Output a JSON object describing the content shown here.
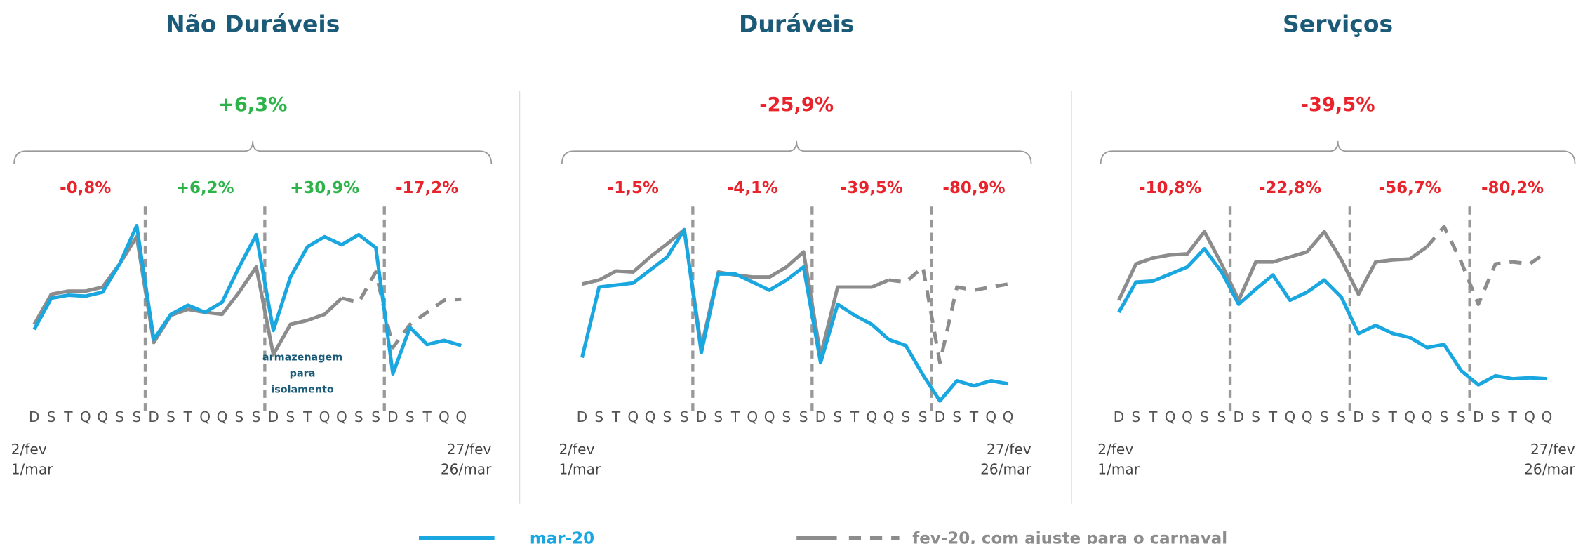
{
  "chart_data": [
    {
      "type": "line",
      "title": "Não Duráveis",
      "total_label": {
        "text": "+6,3%",
        "color": "#2db34a"
      },
      "week_labels": [
        {
          "text": "-0,8%",
          "color": "#e8232b"
        },
        {
          "text": "+6,2%",
          "color": "#2db34a"
        },
        {
          "text": "+30,9%",
          "color": "#2db34a"
        },
        {
          "text": "-17,2%",
          "color": "#e8232b"
        }
      ],
      "categories": [
        "D",
        "S",
        "T",
        "Q",
        "Q",
        "S",
        "S",
        "D",
        "S",
        "T",
        "Q",
        "Q",
        "S",
        "S",
        "D",
        "S",
        "T",
        "Q",
        "Q",
        "S",
        "S",
        "D",
        "S",
        "T",
        "Q",
        "Q"
      ],
      "x_start_labels": [
        "2/fev",
        "1/mar"
      ],
      "x_end_labels": [
        "27/fev",
        "26/mar"
      ],
      "annotation": [
        "armazenagem",
        "para",
        "isolamento"
      ],
      "ylim": [
        0,
        180
      ],
      "series": [
        {
          "name": "mar-20",
          "color": "#1aa7e0",
          "values": [
            73,
            104,
            107,
            106,
            110,
            138,
            176,
            63,
            88,
            97,
            90,
            100,
            135,
            167,
            72,
            125,
            155,
            165,
            157,
            167,
            154,
            29,
            75,
            58,
            62,
            57
          ]
        },
        {
          "name": "fev-20, com ajuste para o carnaval",
          "color": "#8c8c8c",
          "dashed_from": 18,
          "values": [
            78,
            108,
            111,
            111,
            115,
            138,
            165,
            60,
            87,
            93,
            90,
            88,
            110,
            135,
            48,
            78,
            82,
            88,
            104,
            100,
            130,
            55,
            78,
            90,
            102,
            103
          ]
        }
      ]
    },
    {
      "type": "line",
      "title": "Duráveis",
      "total_label": {
        "text": "-25,9%",
        "color": "#e8232b"
      },
      "week_labels": [
        {
          "text": "-1,5%",
          "color": "#e8232b"
        },
        {
          "text": "-4,1%",
          "color": "#e8232b"
        },
        {
          "text": "-39,5%",
          "color": "#e8232b"
        },
        {
          "text": "-80,9%",
          "color": "#e8232b"
        }
      ],
      "categories": [
        "D",
        "S",
        "T",
        "Q",
        "Q",
        "S",
        "S",
        "D",
        "S",
        "T",
        "Q",
        "Q",
        "S",
        "S",
        "D",
        "S",
        "T",
        "Q",
        "Q",
        "S",
        "S",
        "D",
        "S",
        "T",
        "Q",
        "Q"
      ],
      "x_start_labels": [
        "2/fev",
        "1/mar"
      ],
      "x_end_labels": [
        "27/fev",
        "26/mar"
      ],
      "ylim": [
        0,
        180
      ],
      "series": [
        {
          "name": "mar-20",
          "color": "#1aa7e0",
          "values": [
            45,
            115,
            117,
            119,
            132,
            145,
            172,
            50,
            128,
            128,
            120,
            112,
            122,
            135,
            40,
            98,
            87,
            78,
            63,
            57,
            28,
            2,
            22,
            17,
            22,
            19
          ]
        },
        {
          "name": "fev-20, com ajuste para o carnaval",
          "color": "#8c8c8c",
          "dashed_from": 18,
          "values": [
            118,
            122,
            131,
            130,
            145,
            158,
            172,
            55,
            130,
            127,
            125,
            125,
            135,
            150,
            47,
            115,
            115,
            115,
            122,
            120,
            135,
            40,
            115,
            112,
            115,
            118
          ]
        }
      ]
    },
    {
      "type": "line",
      "title": "Serviços",
      "total_label": {
        "text": "-39,5%",
        "color": "#e8232b"
      },
      "week_labels": [
        {
          "text": "-10,8%",
          "color": "#e8232b"
        },
        {
          "text": "-22,8%",
          "color": "#e8232b"
        },
        {
          "text": "-56,7%",
          "color": "#e8232b"
        },
        {
          "text": "-80,2%",
          "color": "#e8232b"
        }
      ],
      "categories": [
        "D",
        "S",
        "T",
        "Q",
        "Q",
        "S",
        "S",
        "D",
        "S",
        "T",
        "Q",
        "Q",
        "S",
        "S",
        "D",
        "S",
        "T",
        "Q",
        "Q",
        "S",
        "S",
        "D",
        "S",
        "T",
        "Q",
        "Q"
      ],
      "x_start_labels": [
        "2/fev",
        "1/mar"
      ],
      "x_end_labels": [
        "27/fev",
        "26/mar"
      ],
      "ylim": [
        0,
        180
      ],
      "series": [
        {
          "name": "mar-20",
          "color": "#1aa7e0",
          "values": [
            90,
            120,
            121,
            128,
            135,
            153,
            130,
            98,
            113,
            127,
            102,
            110,
            122,
            105,
            69,
            77,
            69,
            65,
            55,
            58,
            32,
            18,
            27,
            24,
            25,
            24
          ]
        },
        {
          "name": "fev-20, com ajuste para o carnaval",
          "color": "#8c8c8c",
          "dashed_from": 18,
          "values": [
            102,
            138,
            144,
            147,
            148,
            170,
            138,
            102,
            140,
            140,
            145,
            150,
            170,
            142,
            108,
            140,
            142,
            143,
            155,
            175,
            140,
            98,
            138,
            140,
            138,
            150
          ]
        }
      ]
    }
  ]
}
